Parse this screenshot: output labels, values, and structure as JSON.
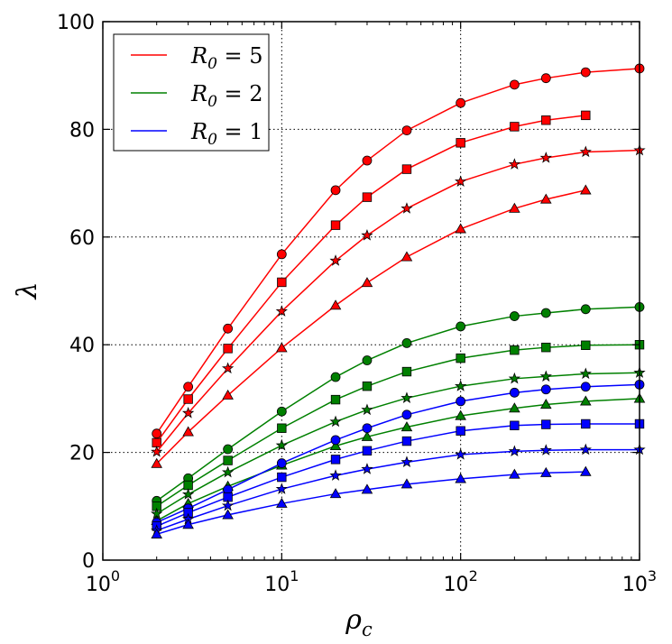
{
  "chart_data": {
    "type": "line",
    "title": "",
    "xlabel": "ρ",
    "xlabel_sub": "c",
    "ylabel": "λ",
    "xscale": "log",
    "xlim": [
      1,
      1000
    ],
    "ylim": [
      0,
      100
    ],
    "grid": true,
    "legend_position": "top-left",
    "x_ticks": [
      {
        "value": 1,
        "base": "10",
        "exp": "0"
      },
      {
        "value": 10,
        "base": "10",
        "exp": "1"
      },
      {
        "value": 100,
        "base": "10",
        "exp": "2"
      },
      {
        "value": 1000,
        "base": "10",
        "exp": "3"
      }
    ],
    "y_ticks": [
      {
        "value": 0,
        "label": "0"
      },
      {
        "value": 20,
        "label": "20"
      },
      {
        "value": 40,
        "label": "40"
      },
      {
        "value": 60,
        "label": "60"
      },
      {
        "value": 80,
        "label": "80"
      },
      {
        "value": 100,
        "label": "100"
      }
    ],
    "legend": [
      {
        "label": "R",
        "sub": "0",
        "rest": "= 5",
        "color": "#ff0000"
      },
      {
        "label": "R",
        "sub": "0",
        "rest": "= 2",
        "color": "#008000"
      },
      {
        "label": "R",
        "sub": "0",
        "rest": "= 1",
        "color": "#0000ff"
      }
    ],
    "series": [
      {
        "group": "R0=5",
        "color": "#ff0000",
        "marker": "circle",
        "x": [
          2,
          3,
          5,
          10,
          20,
          30,
          50,
          100,
          200,
          300,
          500,
          1000
        ],
        "y": [
          23.5,
          32.2,
          43.0,
          56.8,
          68.7,
          74.2,
          79.8,
          84.9,
          88.3,
          89.5,
          90.6,
          91.3
        ]
      },
      {
        "group": "R0=5",
        "color": "#ff0000",
        "marker": "square",
        "x": [
          2,
          3,
          5,
          10,
          20,
          30,
          50,
          100,
          200,
          300,
          500
        ],
        "y": [
          21.8,
          29.9,
          39.3,
          51.6,
          62.2,
          67.4,
          72.6,
          77.5,
          80.5,
          81.7,
          82.6
        ]
      },
      {
        "group": "R0=5",
        "color": "#ff0000",
        "marker": "star",
        "x": [
          2,
          3,
          5,
          10,
          20,
          30,
          50,
          100,
          200,
          300,
          500,
          1000
        ],
        "y": [
          20.1,
          27.3,
          35.6,
          46.2,
          55.6,
          60.3,
          65.3,
          70.3,
          73.5,
          74.7,
          75.8,
          76.1
        ]
      },
      {
        "group": "R0=5",
        "color": "#ff0000",
        "marker": "triangle",
        "x": [
          2,
          3,
          5,
          10,
          20,
          30,
          50,
          100,
          200,
          300,
          500
        ],
        "y": [
          17.9,
          23.8,
          30.6,
          39.4,
          47.3,
          51.5,
          56.3,
          61.5,
          65.3,
          67.0,
          68.7
        ]
      },
      {
        "group": "R0=2",
        "color": "#008000",
        "marker": "circle",
        "x": [
          2,
          3,
          5,
          10,
          20,
          30,
          50,
          100,
          200,
          300,
          500,
          1000
        ],
        "y": [
          11.0,
          15.2,
          20.6,
          27.6,
          34.0,
          37.1,
          40.3,
          43.4,
          45.3,
          45.9,
          46.6,
          47.0
        ]
      },
      {
        "group": "R0=2",
        "color": "#008000",
        "marker": "square",
        "x": [
          2,
          3,
          5,
          10,
          20,
          30,
          50,
          100,
          200,
          300,
          500,
          1000
        ],
        "y": [
          10.0,
          13.9,
          18.5,
          24.5,
          29.8,
          32.3,
          35.0,
          37.5,
          39.0,
          39.5,
          39.9,
          40.0
        ]
      },
      {
        "group": "R0=2",
        "color": "#008000",
        "marker": "star",
        "x": [
          2,
          3,
          5,
          10,
          20,
          30,
          50,
          100,
          200,
          300,
          500,
          1000
        ],
        "y": [
          8.6,
          12.2,
          16.3,
          21.3,
          25.7,
          27.9,
          30.1,
          32.3,
          33.7,
          34.1,
          34.6,
          34.8
        ]
      },
      {
        "group": "R0=2",
        "color": "#008000",
        "marker": "triangle",
        "x": [
          2,
          3,
          5,
          10,
          20,
          30,
          50,
          100,
          200,
          300,
          500,
          1000
        ],
        "y": [
          7.3,
          10.5,
          13.7,
          17.6,
          21.2,
          22.9,
          24.7,
          26.8,
          28.2,
          28.9,
          29.5,
          30.0
        ]
      },
      {
        "group": "R0=1",
        "color": "#0000ff",
        "marker": "circle",
        "x": [
          2,
          3,
          5,
          10,
          20,
          30,
          50,
          100,
          200,
          300,
          500,
          1000
        ],
        "y": [
          7.0,
          9.6,
          13.1,
          18.0,
          22.3,
          24.5,
          27.0,
          29.5,
          31.1,
          31.7,
          32.2,
          32.6
        ]
      },
      {
        "group": "R0=1",
        "color": "#0000ff",
        "marker": "square",
        "x": [
          2,
          3,
          5,
          10,
          20,
          30,
          50,
          100,
          200,
          300,
          500,
          1000
        ],
        "y": [
          6.3,
          8.8,
          11.7,
          15.4,
          18.7,
          20.3,
          22.1,
          24.0,
          25.0,
          25.2,
          25.3,
          25.3
        ]
      },
      {
        "group": "R0=1",
        "color": "#0000ff",
        "marker": "star",
        "x": [
          2,
          3,
          5,
          10,
          20,
          30,
          50,
          100,
          200,
          300,
          500,
          1000
        ],
        "y": [
          5.5,
          7.6,
          10.1,
          13.2,
          15.7,
          16.9,
          18.2,
          19.6,
          20.2,
          20.4,
          20.5,
          20.5
        ]
      },
      {
        "group": "R0=1",
        "color": "#0000ff",
        "marker": "triangle",
        "x": [
          2,
          3,
          5,
          10,
          20,
          30,
          50,
          100,
          200,
          300,
          500
        ],
        "y": [
          4.8,
          6.6,
          8.4,
          10.5,
          12.3,
          13.1,
          14.1,
          15.1,
          15.9,
          16.2,
          16.4
        ]
      }
    ]
  }
}
